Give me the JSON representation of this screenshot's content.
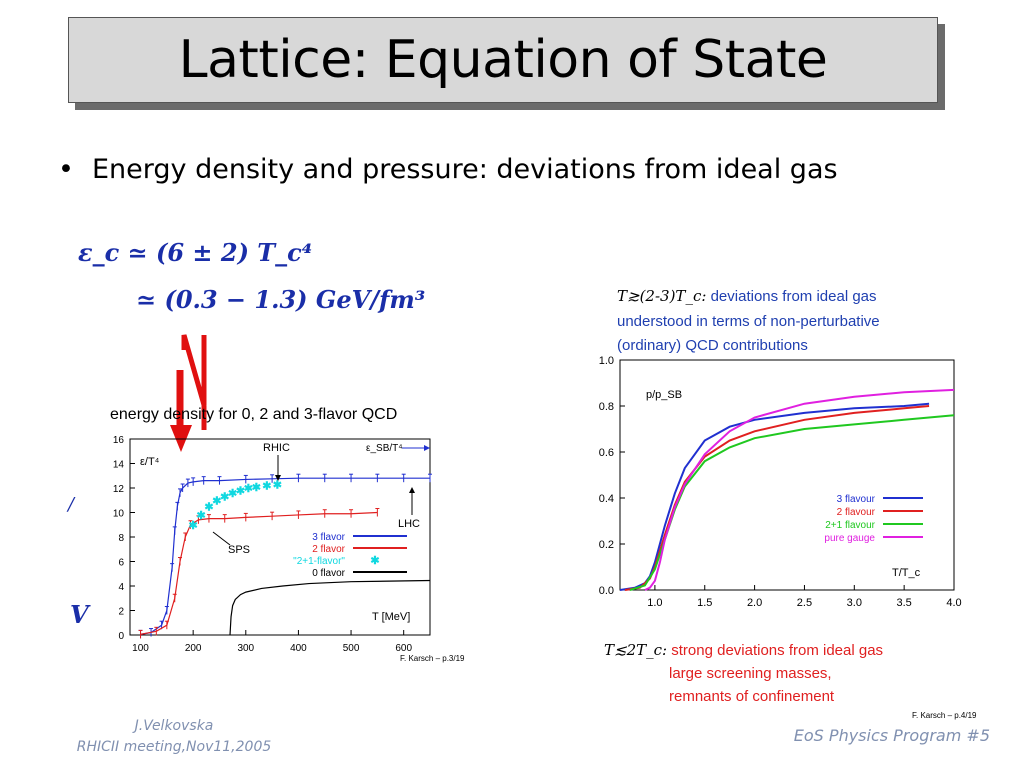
{
  "slide": {
    "title": "Lattice: Equation of State",
    "bullet": "Energy density and pressure: deviations from ideal gas",
    "eq1": "ε_c ≃ (6 ± 2) T_c⁴",
    "eq2": "≃ (0.3 − 1.3) GeV/fm³",
    "side_v": "V",
    "side_tick": "/",
    "right_note_top_math": "T≳(2-3)T_c:",
    "right_note_top_text": "deviations from ideal gas",
    "right_note_top_line2": "understood in terms of non-perturbative",
    "right_note_top_line3": "(ordinary) QCD contributions",
    "right_note_bottom_math": "T≲2T_c:",
    "right_note_bottom_text": "strong deviations from ideal gas",
    "right_note_bottom_line2": "large screening masses,",
    "right_note_bottom_line3": "remnants of confinement",
    "footer_author": "J.Velkovska",
    "footer_meeting": "RHICII meeting,Nov11,2005",
    "footer_program": "EoS Physics Program  #5",
    "colors": {
      "note_blue": "#1f3fb0",
      "note_red": "#e02020",
      "eq_blue": "#1a2ea8",
      "arrow_red": "#e01010"
    }
  },
  "chart_data": [
    {
      "type": "line",
      "title": "energy density for 0, 2 and 3-flavor QCD",
      "ylabel": "ε/T⁴",
      "xlabel": "T [MeV]",
      "xlim": [
        80,
        650
      ],
      "ylim": [
        0,
        16
      ],
      "x_ticks": [
        100,
        200,
        300,
        400,
        500,
        600
      ],
      "y_ticks": [
        0,
        2,
        4,
        6,
        8,
        10,
        12,
        14,
        16
      ],
      "annotations": {
        "rhic": "RHIC",
        "lhc": "LHC",
        "sps": "SPS",
        "sb": "ε_SB/T⁴",
        "credit": "F. Karsch – p.3/19"
      },
      "legend_position": "center-right",
      "series": [
        {
          "name": "3 flavor",
          "color": "#2030d0",
          "x": [
            100,
            120,
            140,
            150,
            160,
            165,
            170,
            175,
            180,
            190,
            200,
            220,
            250,
            300,
            350,
            400,
            450,
            500,
            550,
            600,
            650
          ],
          "y": [
            0.05,
            0.2,
            0.8,
            2.0,
            5.5,
            8.5,
            10.5,
            11.6,
            12.0,
            12.4,
            12.5,
            12.6,
            12.6,
            12.7,
            12.75,
            12.8,
            12.8,
            12.8,
            12.8,
            12.8,
            12.8
          ]
        },
        {
          "name": "2 flavor",
          "color": "#e02020",
          "x": [
            100,
            130,
            150,
            165,
            175,
            185,
            195,
            210,
            230,
            260,
            300,
            350,
            400,
            450,
            500,
            550
          ],
          "y": [
            0.05,
            0.3,
            0.8,
            3.0,
            6.0,
            8.0,
            9.0,
            9.4,
            9.5,
            9.5,
            9.6,
            9.7,
            9.8,
            9.9,
            9.9,
            10.0
          ]
        },
        {
          "name": "\"2+1-flavor\"",
          "color": "#10d8e0",
          "x": [
            200,
            215,
            230,
            245,
            260,
            275,
            290,
            305,
            320,
            340,
            360
          ],
          "y": [
            9.0,
            9.8,
            10.5,
            11.0,
            11.3,
            11.6,
            11.8,
            12.0,
            12.1,
            12.2,
            12.3
          ]
        },
        {
          "name": "0 flavor",
          "color": "#000000",
          "x": [
            270,
            272,
            275,
            280,
            290,
            300,
            330,
            370,
            420,
            500,
            650
          ],
          "y": [
            0,
            1.5,
            2.4,
            2.9,
            3.3,
            3.5,
            3.8,
            4.0,
            4.2,
            4.35,
            4.45
          ]
        }
      ]
    },
    {
      "type": "line",
      "ylabel": "p/p_SB",
      "xlabel": "T/T_c",
      "xlim": [
        0.65,
        4.0
      ],
      "ylim": [
        0,
        1.0
      ],
      "x_ticks": [
        1.0,
        1.5,
        2.0,
        2.5,
        3.0,
        3.5,
        4.0
      ],
      "y_ticks": [
        0.0,
        0.2,
        0.4,
        0.6,
        0.8,
        1.0
      ],
      "annotations": {
        "credit": "F. Karsch – p.4/19"
      },
      "legend_position": "center-right",
      "series": [
        {
          "name": "3 flavour",
          "color": "#2030d0",
          "x": [
            0.65,
            0.8,
            0.9,
            0.95,
            1.0,
            1.1,
            1.2,
            1.3,
            1.5,
            1.75,
            2.0,
            2.5,
            3.0,
            3.5,
            3.75
          ],
          "y": [
            0.0,
            0.01,
            0.03,
            0.06,
            0.12,
            0.28,
            0.42,
            0.53,
            0.65,
            0.71,
            0.74,
            0.77,
            0.79,
            0.8,
            0.81
          ]
        },
        {
          "name": "2 flavour",
          "color": "#e02020",
          "x": [
            0.7,
            0.85,
            0.95,
            1.0,
            1.1,
            1.2,
            1.3,
            1.5,
            1.75,
            2.0,
            2.5,
            3.0,
            3.5,
            3.75
          ],
          "y": [
            0.0,
            0.01,
            0.05,
            0.1,
            0.24,
            0.37,
            0.47,
            0.58,
            0.65,
            0.69,
            0.74,
            0.77,
            0.79,
            0.8
          ]
        },
        {
          "name": "2+1 flavour",
          "color": "#20c820",
          "x": [
            0.75,
            0.9,
            1.0,
            1.1,
            1.2,
            1.3,
            1.5,
            1.75,
            2.0,
            2.5,
            3.0,
            3.5,
            4.0
          ],
          "y": [
            0.0,
            0.02,
            0.09,
            0.22,
            0.35,
            0.45,
            0.56,
            0.62,
            0.66,
            0.7,
            0.72,
            0.74,
            0.76
          ]
        },
        {
          "name": "pure gauge",
          "color": "#e020e0",
          "x": [
            0.9,
            0.95,
            1.0,
            1.05,
            1.1,
            1.2,
            1.3,
            1.5,
            1.75,
            2.0,
            2.5,
            3.0,
            3.5,
            4.0
          ],
          "y": [
            0.0,
            0.01,
            0.04,
            0.12,
            0.22,
            0.36,
            0.46,
            0.59,
            0.69,
            0.75,
            0.81,
            0.84,
            0.86,
            0.87
          ]
        }
      ]
    }
  ]
}
